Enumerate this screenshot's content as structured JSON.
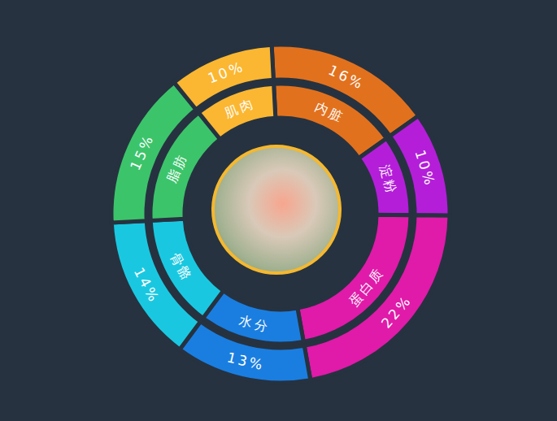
{
  "chart_data": {
    "type": "pie",
    "categories": [
      "内脏",
      "淀粉",
      "蛋白质",
      "水分",
      "骨骼",
      "脂肪",
      "肌肉"
    ],
    "values": [
      16,
      10,
      22,
      13,
      14,
      15,
      10
    ],
    "value_labels": [
      "16%",
      "10%",
      "22%",
      "13%",
      "14%",
      "15%",
      "10%"
    ],
    "colors": [
      "#e2711d",
      "#b41ed9",
      "#e01aa9",
      "#1a7ee0",
      "#19c8e0",
      "#3cc46b",
      "#fbb731"
    ],
    "data_labels": true
  }
}
